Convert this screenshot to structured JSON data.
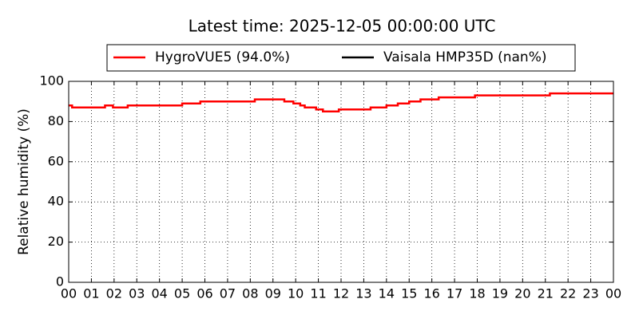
{
  "chart_data": {
    "type": "line",
    "title": "Latest time: 2025-12-05 00:00:00 UTC",
    "ylabel": "Relative humidity (%)",
    "drawstyle": "steps-post",
    "grid": true,
    "legend": "upper center",
    "x": [
      0,
      0.15,
      0.15,
      1.6,
      1.6,
      1.95,
      1.95,
      2.6,
      2.6,
      5.0,
      5.0,
      5.8,
      5.8,
      8.2,
      8.2,
      9.5,
      9.5,
      9.9,
      9.9,
      10.2,
      10.2,
      10.4,
      10.4,
      10.9,
      10.9,
      11.2,
      11.2,
      11.9,
      11.9,
      13.3,
      13.3,
      14.0,
      14.0,
      14.5,
      14.5,
      15.0,
      15.0,
      15.5,
      15.5,
      16.3,
      16.3,
      17.9,
      17.9,
      21.2,
      21.2,
      24
    ],
    "series": [
      {
        "name": "HygroVUE5 (94.0%)",
        "color": "#ff0000",
        "values": [
          88,
          88,
          87,
          87,
          88,
          88,
          87,
          87,
          88,
          88,
          89,
          89,
          90,
          90,
          91,
          91,
          90,
          90,
          89,
          89,
          88,
          88,
          87,
          87,
          86,
          86,
          85,
          85,
          86,
          86,
          87,
          87,
          88,
          88,
          89,
          89,
          90,
          90,
          91,
          91,
          92,
          92,
          93,
          93,
          94,
          94
        ]
      },
      {
        "name": "Vaisala HMP35D (nan%)",
        "color": "#000000",
        "values": [
          null,
          null,
          null,
          null,
          null,
          null,
          null,
          null,
          null,
          null,
          null,
          null,
          null,
          null,
          null,
          null,
          null,
          null,
          null,
          null,
          null,
          null,
          null,
          null,
          null,
          null,
          null,
          null,
          null,
          null,
          null,
          null,
          null,
          null,
          null,
          null,
          null,
          null,
          null,
          null,
          null,
          null,
          null,
          null,
          null,
          null
        ]
      }
    ],
    "xlim": [
      0,
      24
    ],
    "xticks": [
      {
        "value": 0,
        "label": "00"
      },
      {
        "value": 1,
        "label": "01"
      },
      {
        "value": 2,
        "label": "02"
      },
      {
        "value": 3,
        "label": "03"
      },
      {
        "value": 4,
        "label": "04"
      },
      {
        "value": 5,
        "label": "05"
      },
      {
        "value": 6,
        "label": "06"
      },
      {
        "value": 7,
        "label": "07"
      },
      {
        "value": 8,
        "label": "08"
      },
      {
        "value": 9,
        "label": "09"
      },
      {
        "value": 10,
        "label": "10"
      },
      {
        "value": 11,
        "label": "11"
      },
      {
        "value": 12,
        "label": "12"
      },
      {
        "value": 13,
        "label": "13"
      },
      {
        "value": 14,
        "label": "14"
      },
      {
        "value": 15,
        "label": "15"
      },
      {
        "value": 16,
        "label": "16"
      },
      {
        "value": 17,
        "label": "17"
      },
      {
        "value": 18,
        "label": "18"
      },
      {
        "value": 19,
        "label": "19"
      },
      {
        "value": 20,
        "label": "20"
      },
      {
        "value": 21,
        "label": "21"
      },
      {
        "value": 22,
        "label": "22"
      },
      {
        "value": 23,
        "label": "23"
      },
      {
        "value": 24,
        "label": "00"
      }
    ],
    "ylim": [
      0,
      100
    ],
    "yticks": [
      0,
      20,
      40,
      60,
      80,
      100
    ]
  }
}
